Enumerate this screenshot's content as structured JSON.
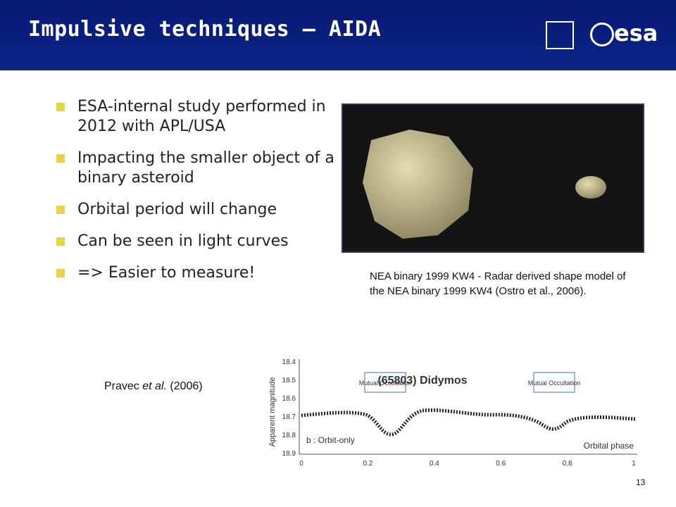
{
  "header": {
    "title": "Impulsive techniques – AIDA",
    "logo": "esa"
  },
  "bullets": [
    "ESA-internal study performed in 2012 with APL/USA",
    "Impacting the smaller object of a binary asteroid",
    "Orbital period will change",
    "Can be seen in light curves",
    "=> Easier to measure!"
  ],
  "image_caption": "NEA binary 1999 KW4 - Radar derived shape model of the NEA binary 1999 KW4 (Ostro et al., 2006).",
  "credit": [
    "Pravec ",
    "et al.",
    " (2006)"
  ],
  "figure": {
    "title": "(65803) Didymos",
    "ylabel": "Apparent magnitude",
    "xlabel": "Orbital phase",
    "annotations": [
      "Mutual Occultation",
      "Mutual Occultation"
    ],
    "legend": "b : Orbit-only",
    "yticks": [
      18.4,
      18.5,
      18.6,
      18.7,
      18.8,
      18.9
    ],
    "xticks": [
      0,
      0.2,
      0.4,
      0.6,
      0.8,
      1
    ]
  },
  "page_number": 13
}
